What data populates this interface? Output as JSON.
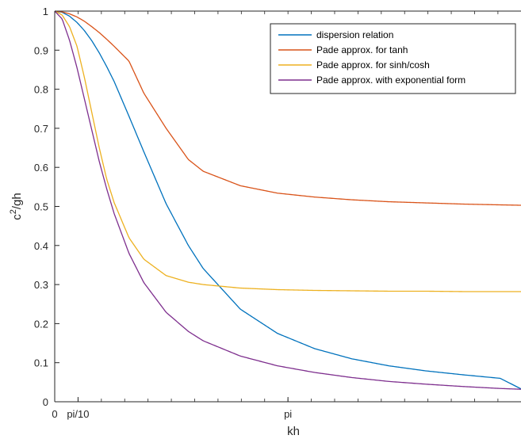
{
  "chart_data": {
    "type": "line",
    "xlabel": "kh",
    "ylabel_base": "c",
    "ylabel_sup": "2",
    "ylabel_rest": "/gh",
    "xlim": [
      0,
      6.28
    ],
    "ylim": [
      0,
      1
    ],
    "xticks": [
      {
        "value": 0,
        "label": "0"
      },
      {
        "value": 0.31416,
        "label": "pi/10"
      },
      {
        "value": 3.14159,
        "label": "pi"
      }
    ],
    "yticks": [
      {
        "value": 0,
        "label": "0"
      },
      {
        "value": 0.1,
        "label": "0.1"
      },
      {
        "value": 0.2,
        "label": "0.2"
      },
      {
        "value": 0.3,
        "label": "0.3"
      },
      {
        "value": 0.4,
        "label": "0.4"
      },
      {
        "value": 0.5,
        "label": "0.5"
      },
      {
        "value": 0.6,
        "label": "0.6"
      },
      {
        "value": 0.7,
        "label": "0.7"
      },
      {
        "value": 0.8,
        "label": "0.8"
      },
      {
        "value": 0.9,
        "label": "0.9"
      },
      {
        "value": 1,
        "label": "1"
      }
    ],
    "legend_position": "top-right",
    "series": [
      {
        "name": "dispersion relation",
        "color": "#0072BD",
        "x": [
          0,
          0.1,
          0.2,
          0.3,
          0.4,
          0.5,
          0.6,
          0.7,
          0.8,
          1.0,
          1.2,
          1.5,
          1.8,
          2.0,
          2.5,
          3.0,
          3.5,
          4.0,
          4.5,
          5.0,
          5.5,
          6.0,
          6.28
        ],
        "y": [
          1.0,
          0.997,
          0.987,
          0.971,
          0.95,
          0.924,
          0.893,
          0.858,
          0.82,
          0.731,
          0.64,
          0.507,
          0.4,
          0.341,
          0.237,
          0.175,
          0.136,
          0.11,
          0.092,
          0.079,
          0.069,
          0.06,
          0.033
        ]
      },
      {
        "name": "Pade approx. for tanh",
        "color": "#D95319",
        "x": [
          0,
          0.1,
          0.2,
          0.3,
          0.4,
          0.5,
          0.6,
          0.7,
          0.8,
          1.0,
          1.2,
          1.5,
          1.8,
          2.0,
          2.5,
          3.0,
          3.5,
          4.0,
          4.5,
          5.0,
          5.5,
          6.0,
          6.28
        ],
        "y": [
          1.0,
          0.998,
          0.993,
          0.985,
          0.974,
          0.96,
          0.945,
          0.928,
          0.91,
          0.872,
          0.79,
          0.7,
          0.62,
          0.59,
          0.553,
          0.534,
          0.524,
          0.517,
          0.512,
          0.509,
          0.506,
          0.504,
          0.503
        ]
      },
      {
        "name": "Pade approx. for sinh/cosh",
        "color": "#EDB120",
        "x": [
          0,
          0.1,
          0.2,
          0.3,
          0.4,
          0.5,
          0.6,
          0.7,
          0.8,
          1.0,
          1.2,
          1.5,
          1.8,
          2.0,
          2.5,
          3.0,
          3.5,
          4.0,
          4.5,
          5.0,
          5.5,
          6.0,
          6.28
        ],
        "y": [
          1.0,
          0.99,
          0.96,
          0.91,
          0.83,
          0.74,
          0.65,
          0.57,
          0.51,
          0.42,
          0.365,
          0.323,
          0.306,
          0.3,
          0.291,
          0.287,
          0.285,
          0.284,
          0.283,
          0.283,
          0.282,
          0.282,
          0.282
        ]
      },
      {
        "name": "Pade approx. with exponential form",
        "color": "#7E2F8E",
        "x": [
          0,
          0.1,
          0.2,
          0.3,
          0.4,
          0.5,
          0.6,
          0.7,
          0.8,
          1.0,
          1.2,
          1.5,
          1.8,
          2.0,
          2.5,
          3.0,
          3.5,
          4.0,
          4.5,
          5.0,
          5.5,
          6.0,
          6.28
        ],
        "y": [
          1.0,
          0.98,
          0.925,
          0.855,
          0.775,
          0.695,
          0.615,
          0.545,
          0.482,
          0.38,
          0.305,
          0.229,
          0.18,
          0.156,
          0.117,
          0.092,
          0.075,
          0.062,
          0.052,
          0.045,
          0.039,
          0.034,
          0.032
        ]
      }
    ]
  }
}
